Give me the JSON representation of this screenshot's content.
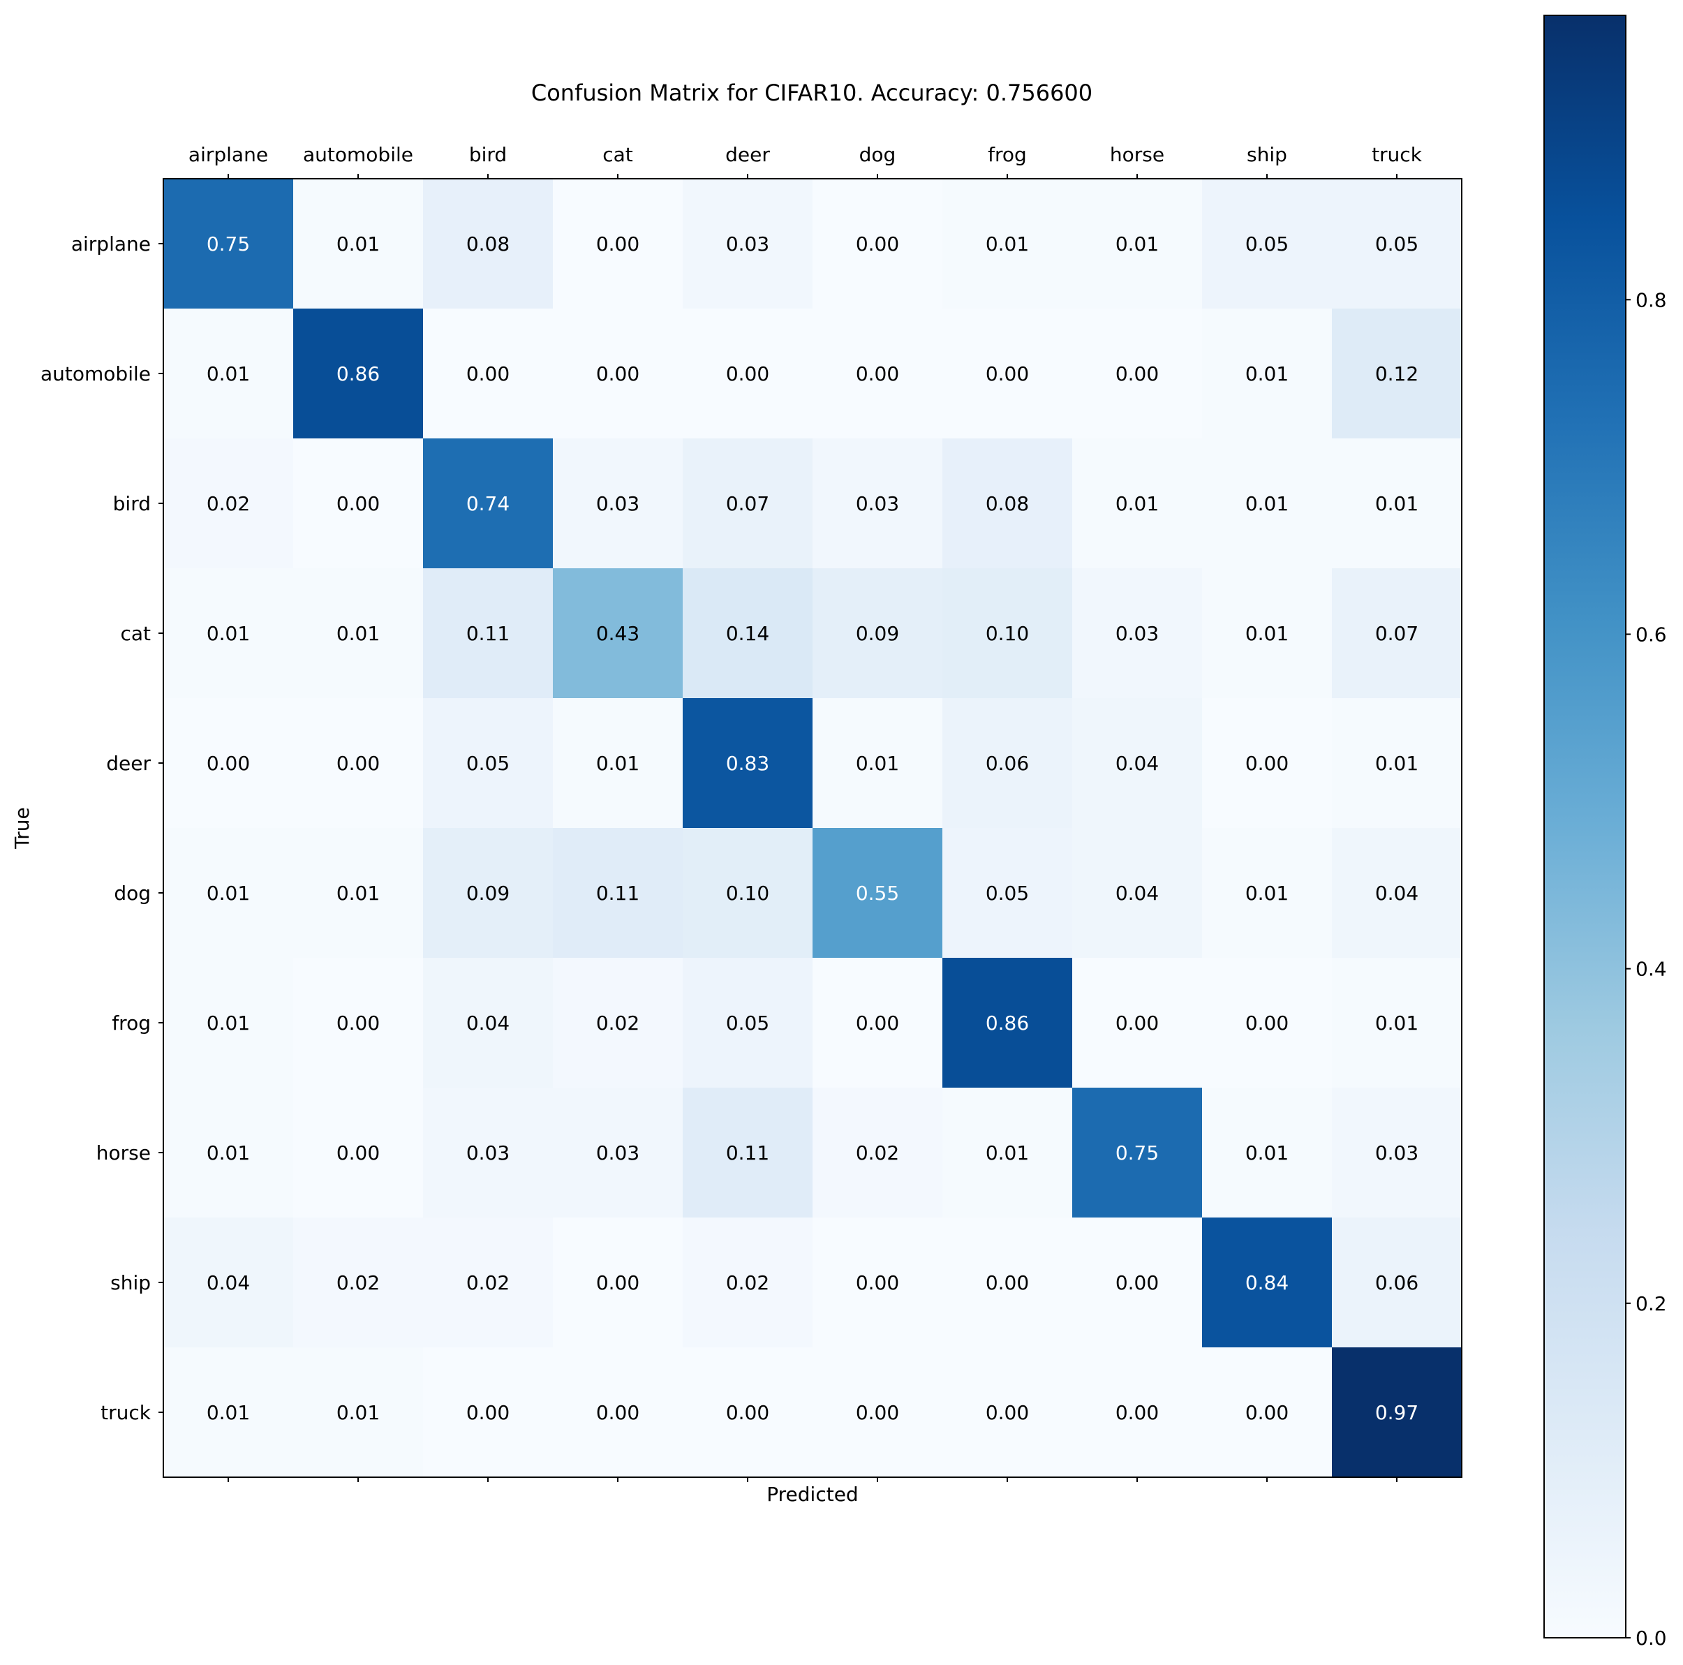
{
  "chart_data": {
    "type": "heatmap",
    "title": "Confusion Matrix for CIFAR10. Accuracy: 0.756600",
    "xlabel": "Predicted",
    "ylabel": "True",
    "x_categories": [
      "airplane",
      "automobile",
      "bird",
      "cat",
      "deer",
      "dog",
      "frog",
      "horse",
      "ship",
      "truck"
    ],
    "y_categories": [
      "airplane",
      "automobile",
      "bird",
      "cat",
      "deer",
      "dog",
      "frog",
      "horse",
      "ship",
      "truck"
    ],
    "values": [
      [
        0.75,
        0.01,
        0.08,
        0.0,
        0.03,
        0.0,
        0.01,
        0.01,
        0.05,
        0.05
      ],
      [
        0.01,
        0.86,
        0.0,
        0.0,
        0.0,
        0.0,
        0.0,
        0.0,
        0.01,
        0.12
      ],
      [
        0.02,
        0.0,
        0.74,
        0.03,
        0.07,
        0.03,
        0.08,
        0.01,
        0.01,
        0.01
      ],
      [
        0.01,
        0.01,
        0.11,
        0.43,
        0.14,
        0.09,
        0.1,
        0.03,
        0.01,
        0.07
      ],
      [
        0.0,
        0.0,
        0.05,
        0.01,
        0.83,
        0.01,
        0.06,
        0.04,
        0.0,
        0.01
      ],
      [
        0.01,
        0.01,
        0.09,
        0.11,
        0.1,
        0.55,
        0.05,
        0.04,
        0.01,
        0.04
      ],
      [
        0.01,
        0.0,
        0.04,
        0.02,
        0.05,
        0.0,
        0.86,
        0.0,
        0.0,
        0.01
      ],
      [
        0.01,
        0.0,
        0.03,
        0.03,
        0.11,
        0.02,
        0.01,
        0.75,
        0.01,
        0.03
      ],
      [
        0.04,
        0.02,
        0.02,
        0.0,
        0.02,
        0.0,
        0.0,
        0.0,
        0.84,
        0.06
      ],
      [
        0.01,
        0.01,
        0.0,
        0.0,
        0.0,
        0.0,
        0.0,
        0.0,
        0.0,
        0.97
      ]
    ],
    "colormap": "Blues",
    "color_range": [
      0.0,
      0.97
    ],
    "colorbar_ticks": [
      "0.0",
      "0.2",
      "0.4",
      "0.6",
      "0.8"
    ],
    "colorbar_tick_values": [
      0.0,
      0.2,
      0.4,
      0.6,
      0.8
    ],
    "x_ticks_position": "top",
    "grid": false
  }
}
